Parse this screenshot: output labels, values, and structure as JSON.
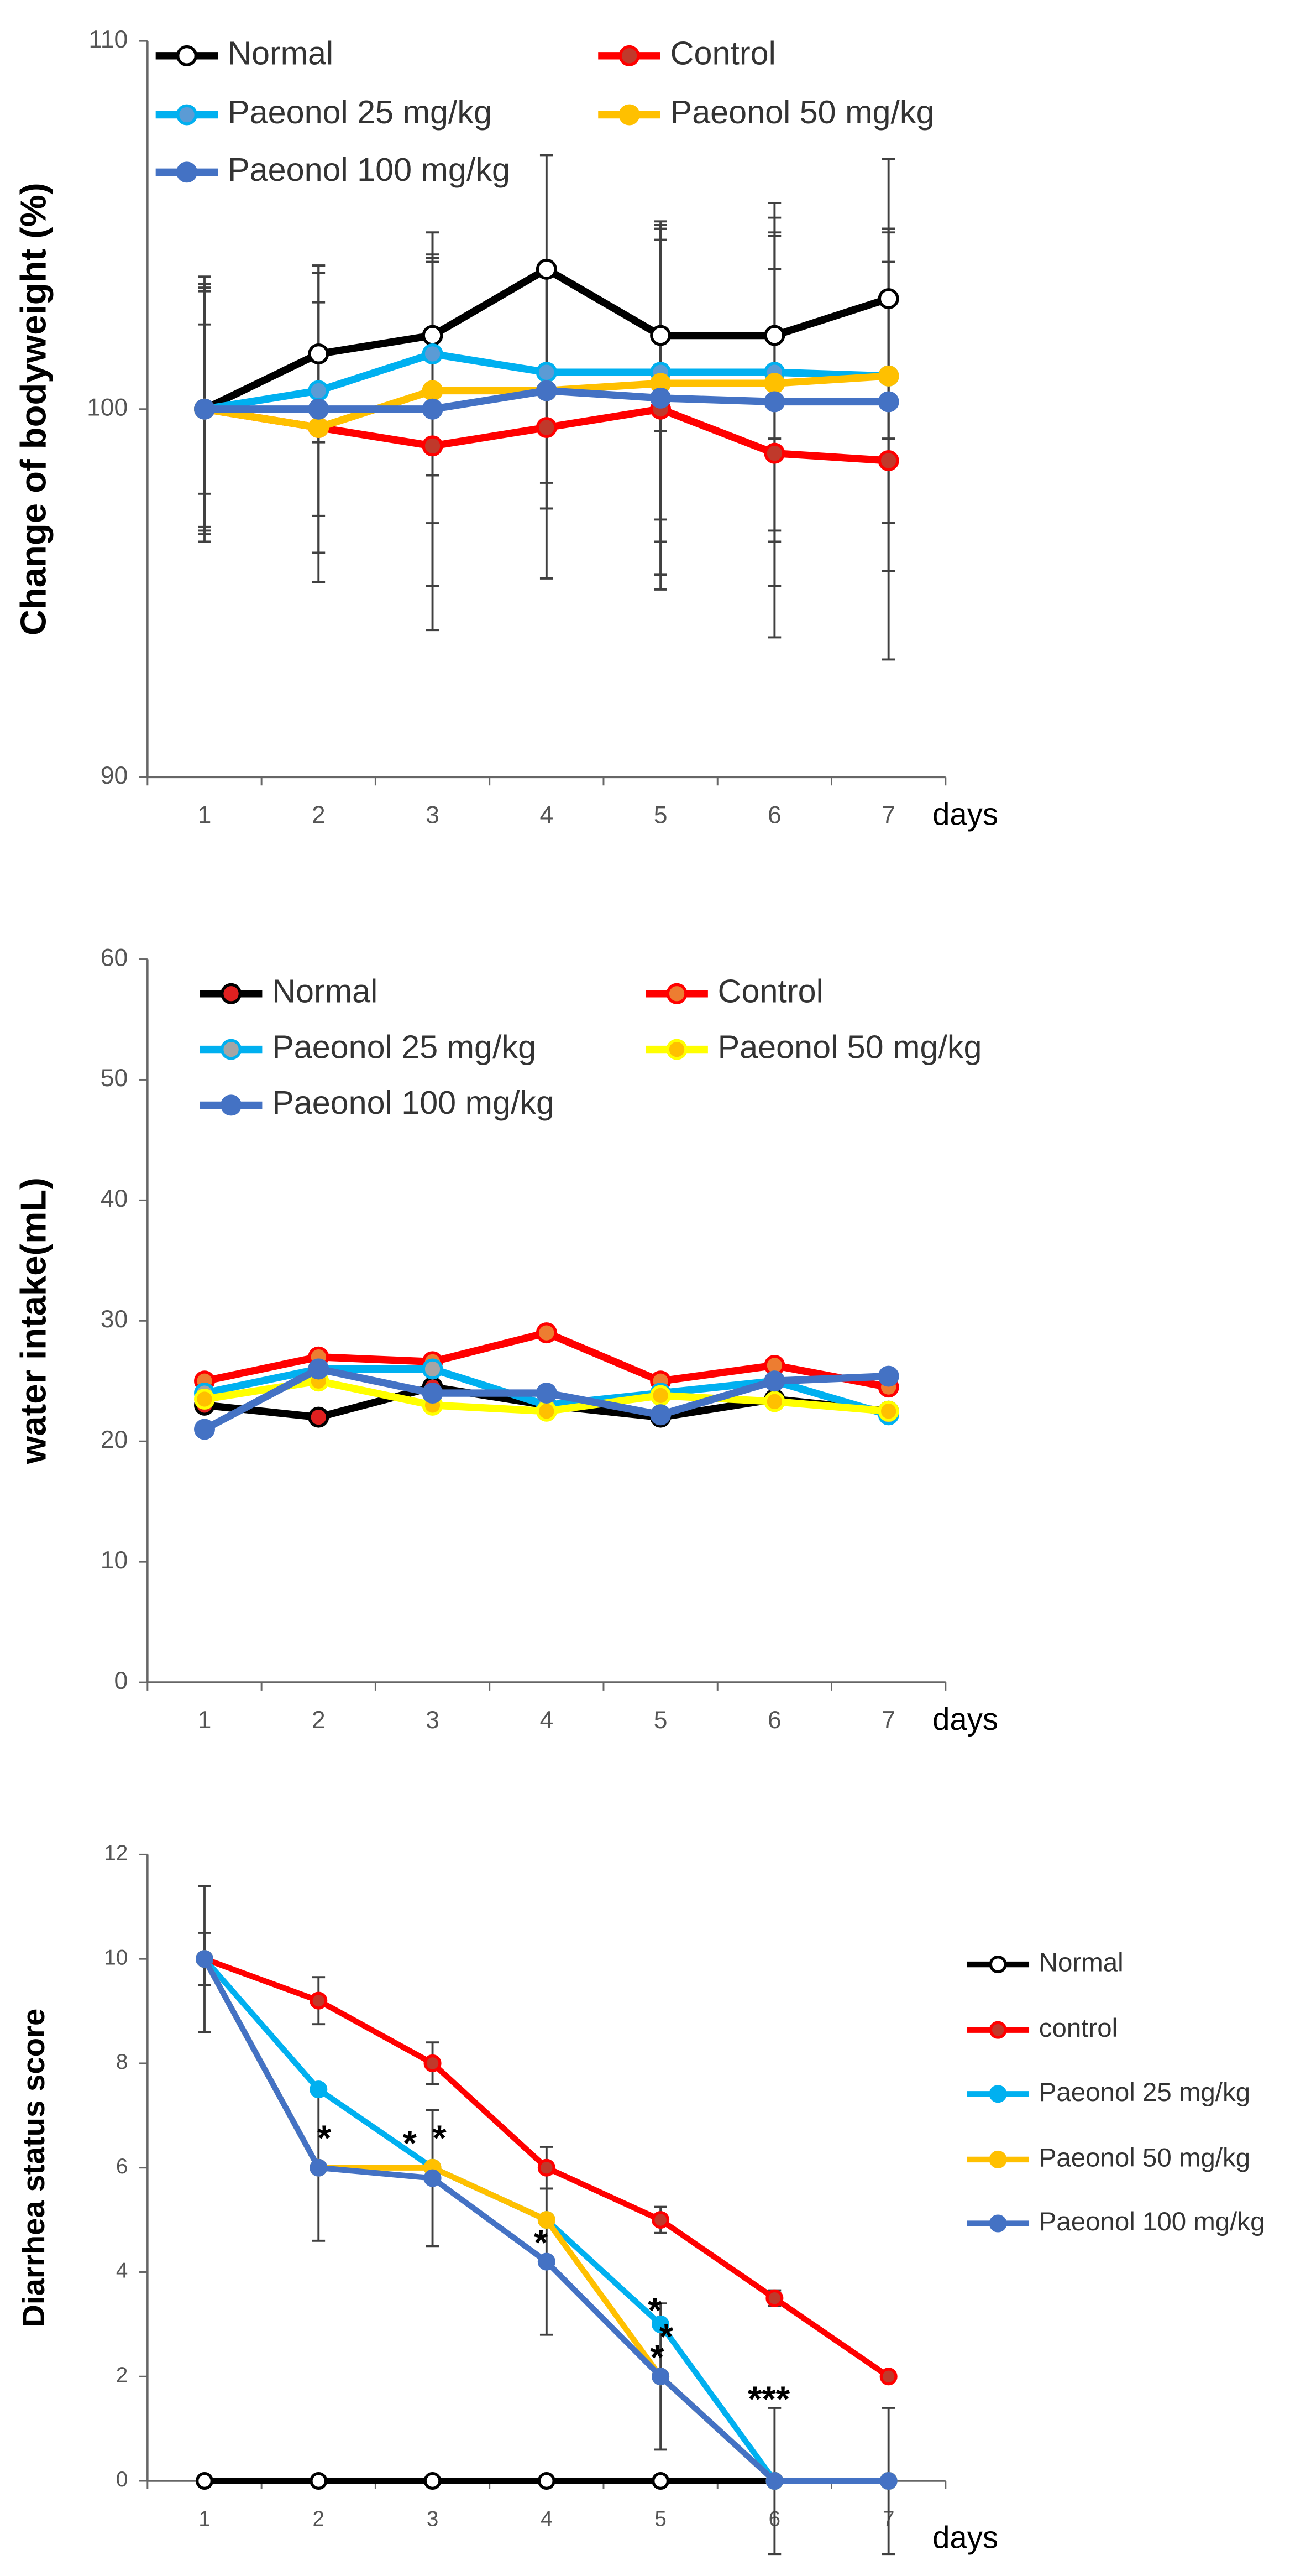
{
  "chart_data": [
    {
      "type": "line",
      "y_label": "Change of bodyweight (%)",
      "x_label": "days",
      "categories": [
        "1",
        "2",
        "3",
        "4",
        "5",
        "6",
        "7"
      ],
      "ylim": [
        90,
        110
      ],
      "yticks": [
        90,
        100,
        110
      ],
      "grid": false,
      "legend": "top",
      "series": [
        {
          "name": "Normal",
          "color": "#000000",
          "marker_color": "#ffffff",
          "values": [
            100,
            101.5,
            102,
            103.8,
            102,
            102,
            103
          ],
          "errors": [
            3.6,
            2.4,
            2.2,
            3.1,
            2.6,
            2.8,
            3.8
          ]
        },
        {
          "name": "Control",
          "color": "#ff0000",
          "marker_color": "#c0392b",
          "values": [
            100,
            99.5,
            99,
            99.5,
            100,
            98.8,
            98.6
          ],
          "errors": [
            3.2,
            4.2,
            5.0,
            4.1,
            4.9,
            5.0,
            5.4
          ]
        },
        {
          "name": "Paeonol 25 mg/kg",
          "color": "#00b0f0",
          "marker_color": "#5b9bd5",
          "values": [
            100,
            100.5,
            101.5,
            101,
            101,
            101,
            100.9
          ],
          "errors": [
            3.4,
            3.4,
            3.3,
            3.0,
            4.0,
            4.6,
            4.0
          ]
        },
        {
          "name": "Paeonol 50 mg/kg",
          "color": "#ffc000",
          "marker_color": "#ffc000",
          "values": [
            100,
            99.5,
            100.5,
            100.5,
            100.7,
            100.7,
            100.9
          ],
          "errors": [
            3.3,
            3.4,
            3.6,
            3.2,
            4.3,
            4.0,
            4.0
          ]
        },
        {
          "name": "Paeonol 100 mg/kg",
          "color": "#4472c4",
          "marker_color": "#4472c4",
          "values": [
            100,
            100,
            100,
            100.5,
            100.3,
            100.2,
            100.2
          ],
          "errors": [
            2.3,
            3.9,
            4.8,
            3.2,
            4.8,
            5.0,
            4.6
          ]
        }
      ]
    },
    {
      "type": "line",
      "y_label": "water intake(mL)",
      "x_label": "days",
      "categories": [
        "1",
        "2",
        "3",
        "4",
        "5",
        "6",
        "7"
      ],
      "ylim": [
        0,
        60
      ],
      "yticks": [
        0,
        10,
        20,
        30,
        40,
        50,
        60
      ],
      "grid": false,
      "legend": "top",
      "series": [
        {
          "name": "Normal",
          "color": "#000000",
          "marker_color": "#e02020",
          "values": [
            23,
            22,
            24.5,
            23,
            22,
            23.5,
            22.5
          ]
        },
        {
          "name": "Control",
          "color": "#ff0000",
          "marker_color": "#ed7d31",
          "values": [
            25,
            27,
            26.6,
            29,
            25,
            26.3,
            24.5
          ]
        },
        {
          "name": "Paeonol 25 mg/kg",
          "color": "#00b0f0",
          "marker_color": "#a5a5a5",
          "values": [
            24,
            26,
            26,
            23,
            24,
            25,
            22.2
          ]
        },
        {
          "name": "Paeonol 50 mg/kg",
          "color": "#ffff00",
          "marker_color": "#ffc000",
          "values": [
            23.5,
            25,
            23,
            22.5,
            23.8,
            23.3,
            22.5
          ]
        },
        {
          "name": "Paeonol 100 mg/kg",
          "color": "#4472c4",
          "marker_color": "#4472c4",
          "values": [
            21,
            26,
            24,
            24,
            22.2,
            25,
            25.4
          ]
        }
      ]
    },
    {
      "type": "line",
      "y_label": "Diarrhea status score",
      "x_label": "days",
      "categories": [
        "1",
        "2",
        "3",
        "4",
        "5",
        "6",
        "7"
      ],
      "ylim": [
        0,
        12
      ],
      "yticks": [
        0,
        2,
        4,
        6,
        8,
        10,
        12
      ],
      "grid": false,
      "legend": "right",
      "series": [
        {
          "name": "Normal",
          "color": "#000000",
          "marker_color": "#ffffff",
          "values": [
            0,
            0,
            0,
            0,
            0,
            0,
            0
          ]
        },
        {
          "name": "control",
          "color": "#ff0000",
          "marker_color": "#c0392b",
          "values": [
            10,
            9.2,
            8,
            6,
            5,
            3.5,
            2
          ],
          "errors": [
            0.5,
            0.45,
            0.4,
            0.4,
            0.25,
            0.15,
            0.1
          ]
        },
        {
          "name": "Paeonol 25 mg/kg",
          "color": "#00b0f0",
          "marker_color": "#00b0f0",
          "values": [
            10,
            7.5,
            6,
            5,
            3,
            0,
            0
          ]
        },
        {
          "name": "Paeonol 50 mg/kg",
          "color": "#ffc000",
          "marker_color": "#ffc000",
          "values": [
            10,
            6,
            6,
            5,
            2,
            0,
            0
          ]
        },
        {
          "name": "Paeonol 100 mg/kg",
          "color": "#4472c4",
          "marker_color": "#4472c4",
          "values": [
            10,
            6,
            5.8,
            4.2,
            2,
            0,
            0
          ],
          "errors": [
            1.4,
            1.4,
            1.3,
            1.4,
            1.4,
            1.4,
            1.4
          ]
        }
      ],
      "annotations": [
        {
          "text": "*",
          "x": 2.05,
          "y": 6.7
        },
        {
          "text": "*",
          "x": 2.8,
          "y": 6.6
        },
        {
          "text": "*",
          "x": 3.06,
          "y": 6.7
        },
        {
          "text": "*",
          "x": 3.95,
          "y": 4.7
        },
        {
          "text": "*",
          "x": 4.95,
          "y": 3.4
        },
        {
          "text": "*",
          "x": 5.05,
          "y": 2.9
        },
        {
          "text": "*",
          "x": 4.97,
          "y": 2.5
        },
        {
          "text": "***",
          "x": 5.95,
          "y": 1.7
        }
      ]
    }
  ]
}
